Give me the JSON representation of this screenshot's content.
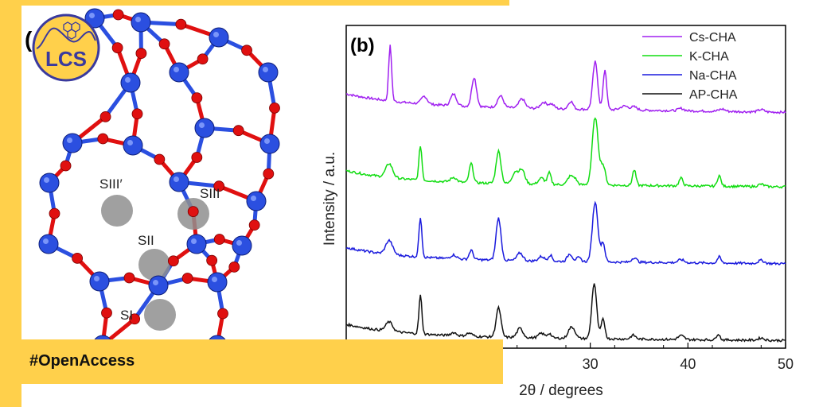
{
  "logo": {
    "text": "LCS"
  },
  "structure": {
    "panel_label": "(",
    "site_labels": [
      "SIII′",
      "SIII",
      "SII",
      "SI"
    ]
  },
  "banner": {
    "text": "#OpenAccess"
  },
  "colors": {
    "accent_yellow": "#FFD04B",
    "si_atom": "#2B4FE0",
    "o_atom": "#E01010",
    "cation_site": "#8F8F8F",
    "cs": "#A020F0",
    "k": "#11DD11",
    "na": "#1A1ADD",
    "ap": "#111111"
  },
  "chart_data": {
    "type": "line",
    "panel_label": "(b)",
    "xlabel": "2θ / degrees",
    "ylabel": "Intensity / a.u.",
    "xlim": [
      5,
      50
    ],
    "xticks": [
      30,
      40,
      50
    ],
    "legend_position": "top-right",
    "series": [
      {
        "name": "Cs-CHA",
        "color": "#A020F0",
        "baseline": 3.0,
        "slope": -0.08,
        "peaks": [
          [
            9.5,
            0.72,
            0.15
          ],
          [
            13.0,
            0.1,
            0.3
          ],
          [
            16.0,
            0.15,
            0.3
          ],
          [
            18.1,
            0.38,
            0.25
          ],
          [
            20.8,
            0.15,
            0.3
          ],
          [
            23.0,
            0.12,
            0.3
          ],
          [
            25.2,
            0.08,
            0.3
          ],
          [
            26.0,
            0.06,
            0.3
          ],
          [
            28.0,
            0.1,
            0.25
          ],
          [
            30.5,
            0.62,
            0.25
          ],
          [
            31.5,
            0.52,
            0.18
          ],
          [
            33.5,
            0.05,
            0.4
          ],
          [
            34.5,
            0.04,
            0.3
          ],
          [
            39.3,
            0.03,
            0.3
          ],
          [
            43.5,
            0.03,
            0.3
          ],
          [
            47.5,
            0.03,
            0.3
          ]
        ]
      },
      {
        "name": "K-CHA",
        "color": "#11DD11",
        "baseline": 2.0,
        "slope": -0.05,
        "peaks": [
          [
            9.4,
            0.18,
            0.35
          ],
          [
            12.6,
            0.45,
            0.15
          ],
          [
            16.0,
            0.06,
            0.3
          ],
          [
            17.8,
            0.25,
            0.2
          ],
          [
            20.6,
            0.42,
            0.25
          ],
          [
            22.3,
            0.15,
            0.3
          ],
          [
            23.0,
            0.18,
            0.3
          ],
          [
            25.0,
            0.08,
            0.3
          ],
          [
            25.8,
            0.15,
            0.18
          ],
          [
            27.9,
            0.1,
            0.25
          ],
          [
            28.4,
            0.08,
            0.25
          ],
          [
            30.5,
            0.88,
            0.3
          ],
          [
            31.3,
            0.25,
            0.25
          ],
          [
            34.5,
            0.2,
            0.18
          ],
          [
            39.3,
            0.1,
            0.2
          ],
          [
            43.2,
            0.14,
            0.18
          ],
          [
            47.5,
            0.03,
            0.3
          ]
        ]
      },
      {
        "name": "Na-CHA",
        "color": "#1A1ADD",
        "baseline": 1.0,
        "slope": -0.05,
        "peaks": [
          [
            9.4,
            0.18,
            0.35
          ],
          [
            12.6,
            0.52,
            0.15
          ],
          [
            16.0,
            0.05,
            0.3
          ],
          [
            17.8,
            0.12,
            0.2
          ],
          [
            20.6,
            0.55,
            0.25
          ],
          [
            22.8,
            0.1,
            0.3
          ],
          [
            25.0,
            0.06,
            0.3
          ],
          [
            25.9,
            0.08,
            0.2
          ],
          [
            27.9,
            0.1,
            0.25
          ],
          [
            28.8,
            0.05,
            0.25
          ],
          [
            30.5,
            0.78,
            0.28
          ],
          [
            31.3,
            0.25,
            0.2
          ],
          [
            34.5,
            0.06,
            0.25
          ],
          [
            39.3,
            0.04,
            0.3
          ],
          [
            43.2,
            0.08,
            0.18
          ],
          [
            47.5,
            0.04,
            0.3
          ]
        ]
      },
      {
        "name": "AP-CHA",
        "color": "#111111",
        "baseline": 0.0,
        "slope": -0.05,
        "peaks": [
          [
            9.4,
            0.12,
            0.35
          ],
          [
            12.6,
            0.5,
            0.15
          ],
          [
            16.0,
            0.04,
            0.3
          ],
          [
            17.6,
            0.04,
            0.3
          ],
          [
            20.6,
            0.38,
            0.25
          ],
          [
            22.8,
            0.12,
            0.3
          ],
          [
            25.0,
            0.06,
            0.3
          ],
          [
            25.8,
            0.06,
            0.2
          ],
          [
            27.9,
            0.1,
            0.25
          ],
          [
            28.3,
            0.1,
            0.25
          ],
          [
            30.4,
            0.72,
            0.25
          ],
          [
            31.3,
            0.25,
            0.2
          ],
          [
            34.4,
            0.05,
            0.25
          ],
          [
            39.3,
            0.05,
            0.3
          ],
          [
            43.1,
            0.08,
            0.18
          ],
          [
            47.5,
            0.03,
            0.3
          ]
        ]
      }
    ]
  }
}
